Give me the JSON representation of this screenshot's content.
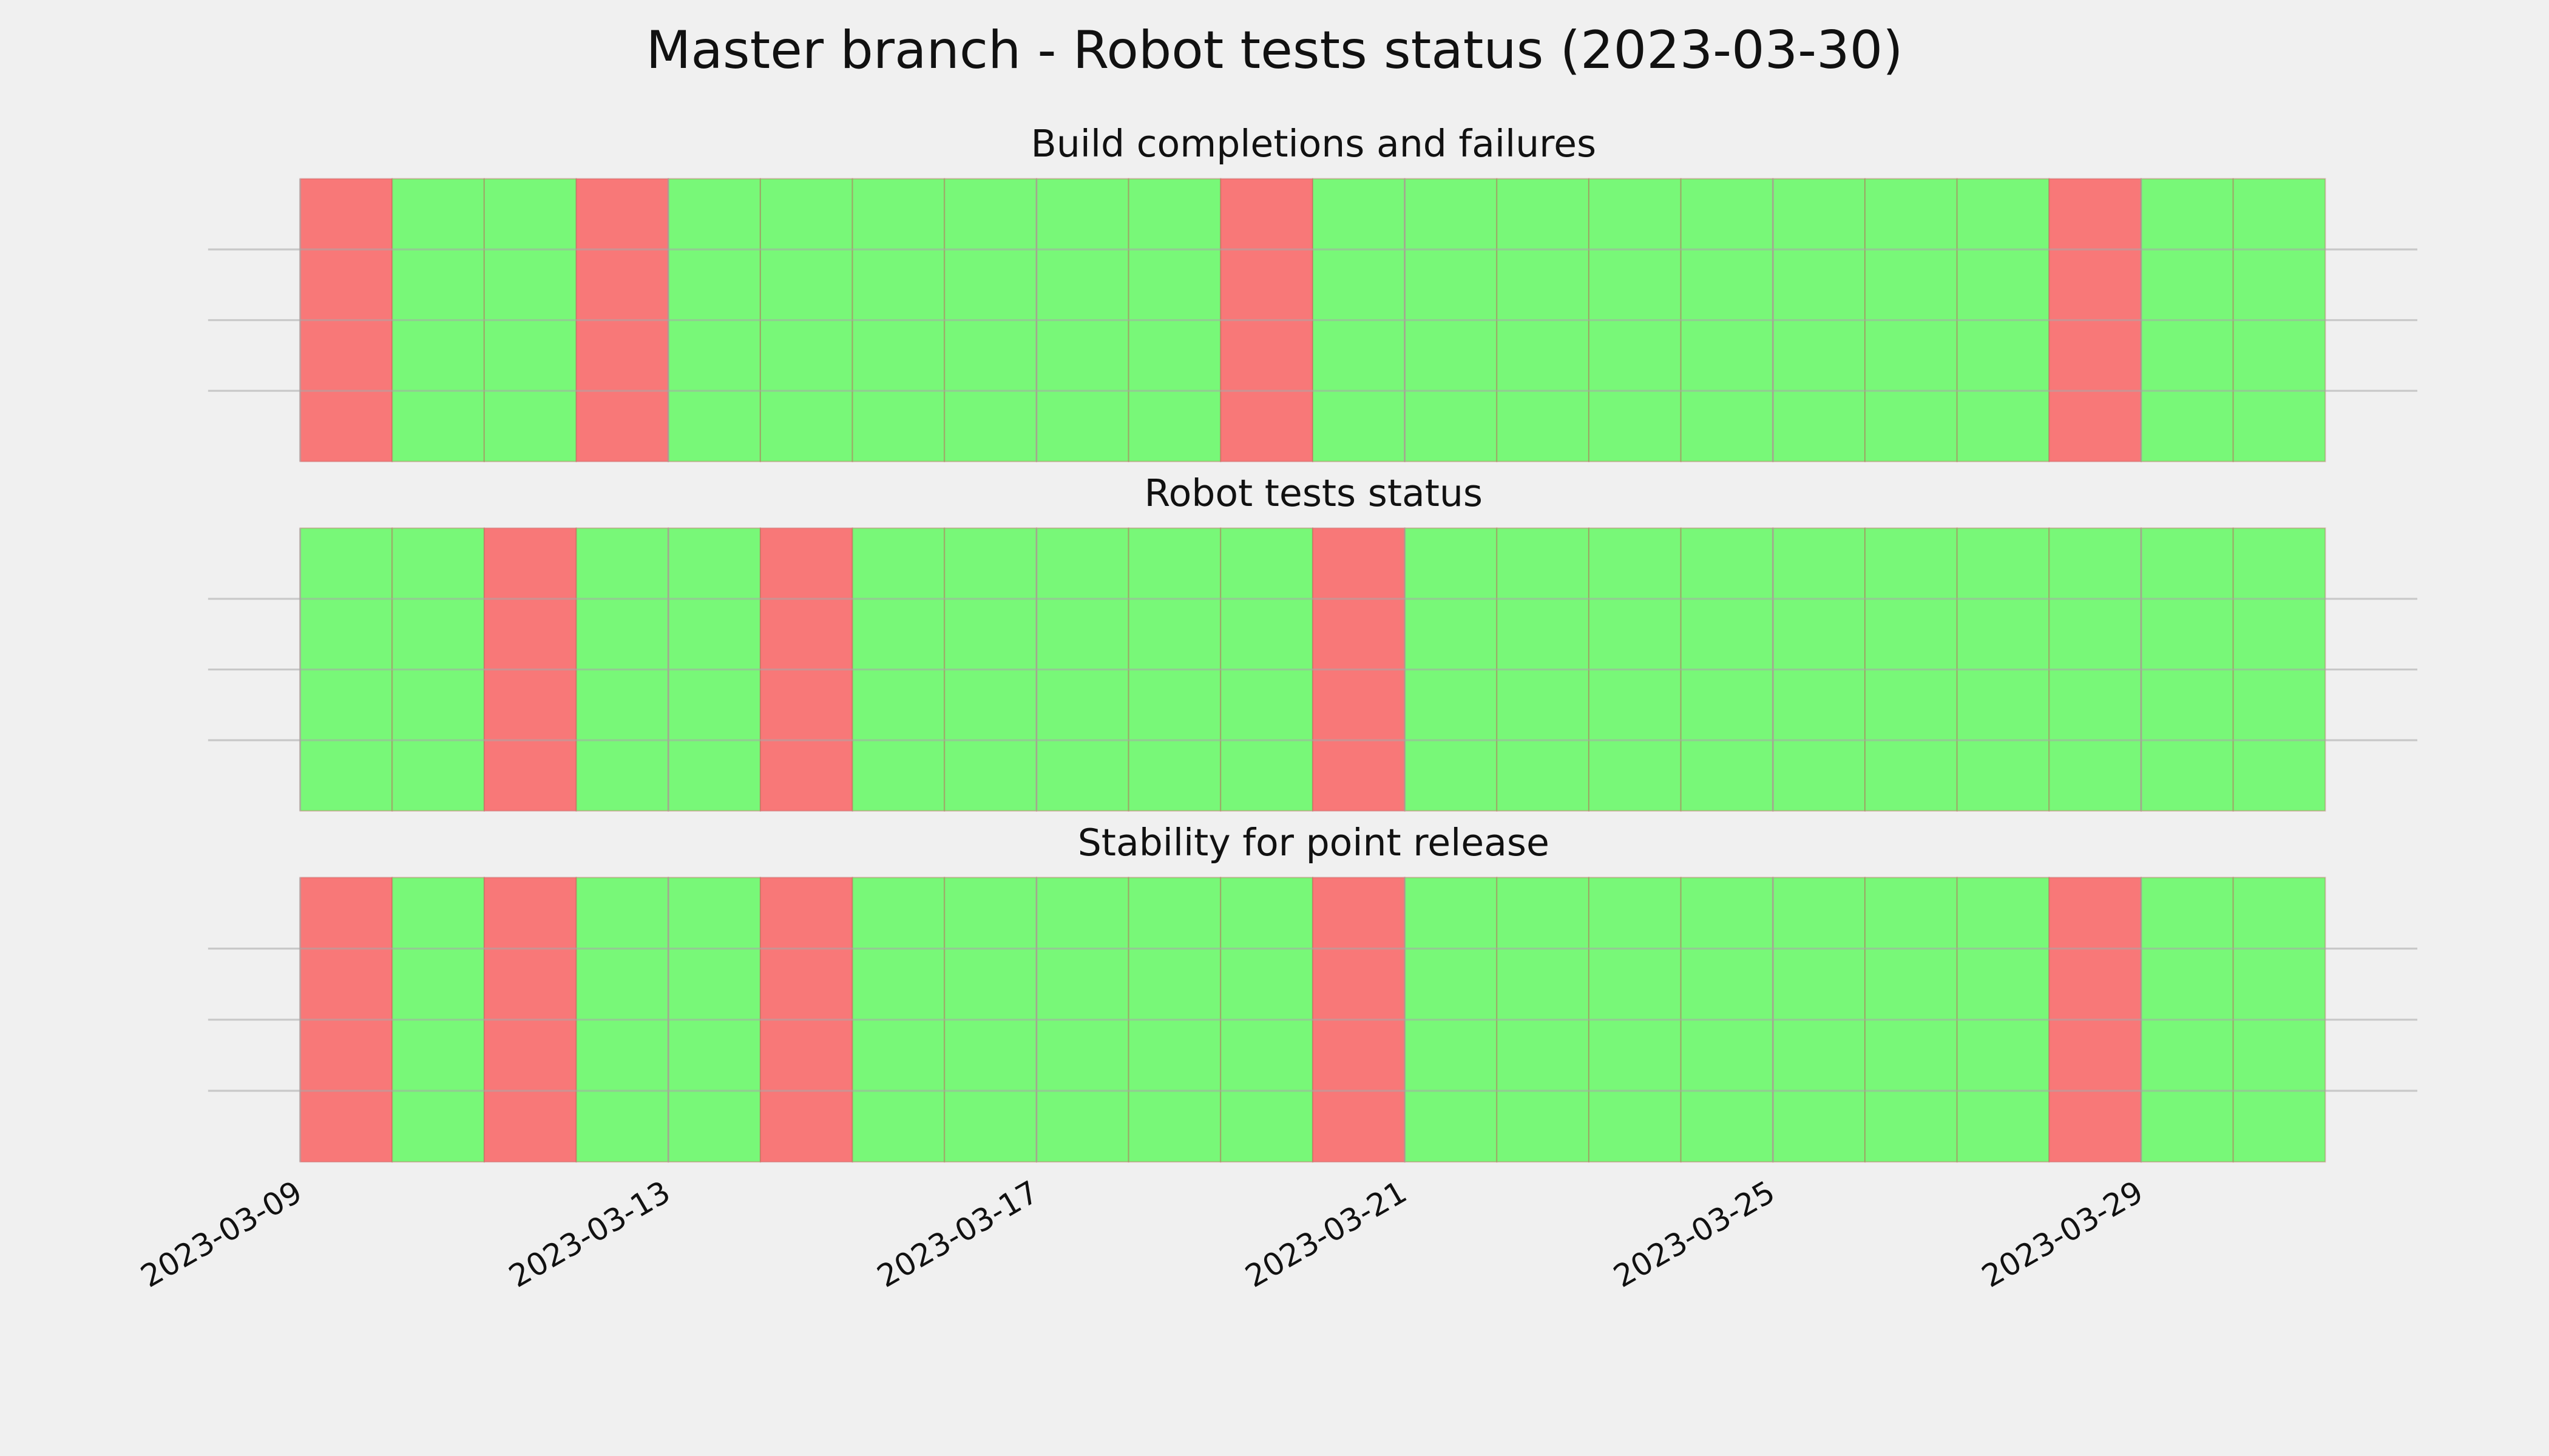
{
  "title": "Master branch - Robot tests status (2023-03-30)",
  "xlim": [
    "2023-03-08",
    "2023-04-01"
  ],
  "xticks": [
    "2023-03-09",
    "2023-03-13",
    "2023-03-17",
    "2023-03-21",
    "2023-03-25",
    "2023-03-29"
  ],
  "chart_data": [
    {
      "type": "timeline",
      "title": "Build completions and failures",
      "ylim": [
        0,
        1
      ],
      "yticks": [
        0.25,
        0.5,
        0.75
      ],
      "grid": true,
      "x": [
        "2023-03-09",
        "2023-03-10",
        "2023-03-11",
        "2023-03-12",
        "2023-03-13",
        "2023-03-14",
        "2023-03-15",
        "2023-03-16",
        "2023-03-17",
        "2023-03-18",
        "2023-03-19",
        "2023-03-20",
        "2023-03-21",
        "2023-03-22",
        "2023-03-23",
        "2023-03-24",
        "2023-03-25",
        "2023-03-26",
        "2023-03-27",
        "2023-03-28",
        "2023-03-29",
        "2023-03-30"
      ],
      "colors": [
        "#f87878",
        "#78f878",
        "#78f878",
        "#f87878",
        "#78f878",
        "#78f878",
        "#78f878",
        "#78f878",
        "#78f878",
        "#78f878",
        "#f87878",
        "#78f878",
        "#78f878",
        "#78f878",
        "#78f878",
        "#78f878",
        "#78f878",
        "#78f878",
        "#78f878",
        "#f87878",
        "#78f878",
        "#78f878"
      ]
    },
    {
      "type": "timeline",
      "title": "Robot tests status",
      "ylim": [
        0,
        1
      ],
      "yticks": [
        0.25,
        0.5,
        0.75
      ],
      "grid": true,
      "x": [
        "2023-03-09",
        "2023-03-10",
        "2023-03-11",
        "2023-03-12",
        "2023-03-13",
        "2023-03-14",
        "2023-03-15",
        "2023-03-16",
        "2023-03-17",
        "2023-03-18",
        "2023-03-19",
        "2023-03-20",
        "2023-03-21",
        "2023-03-22",
        "2023-03-23",
        "2023-03-24",
        "2023-03-25",
        "2023-03-26",
        "2023-03-27",
        "2023-03-28",
        "2023-03-29",
        "2023-03-30"
      ],
      "colors": [
        "#78f878",
        "#78f878",
        "#f87878",
        "#78f878",
        "#78f878",
        "#f87878",
        "#78f878",
        "#78f878",
        "#78f878",
        "#78f878",
        "#78f878",
        "#f87878",
        "#78f878",
        "#78f878",
        "#78f878",
        "#78f878",
        "#78f878",
        "#78f878",
        "#78f878",
        "#78f878",
        "#78f878",
        "#78f878"
      ]
    },
    {
      "type": "timeline",
      "title": "Stability for point release",
      "ylim": [
        0,
        1
      ],
      "yticks": [
        0.25,
        0.5,
        0.75
      ],
      "grid": true,
      "x": [
        "2023-03-09",
        "2023-03-10",
        "2023-03-11",
        "2023-03-12",
        "2023-03-13",
        "2023-03-14",
        "2023-03-15",
        "2023-03-16",
        "2023-03-17",
        "2023-03-18",
        "2023-03-19",
        "2023-03-20",
        "2023-03-21",
        "2023-03-22",
        "2023-03-23",
        "2023-03-24",
        "2023-03-25",
        "2023-03-26",
        "2023-03-27",
        "2023-03-28",
        "2023-03-29",
        "2023-03-30"
      ],
      "colors": [
        "#f87878",
        "#78f878",
        "#f87878",
        "#78f878",
        "#78f878",
        "#f87878",
        "#78f878",
        "#78f878",
        "#78f878",
        "#78f878",
        "#78f878",
        "#f87878",
        "#78f878",
        "#78f878",
        "#78f878",
        "#78f878",
        "#78f878",
        "#78f878",
        "#78f878",
        "#f87878",
        "#78f878",
        "#78f878"
      ]
    }
  ]
}
